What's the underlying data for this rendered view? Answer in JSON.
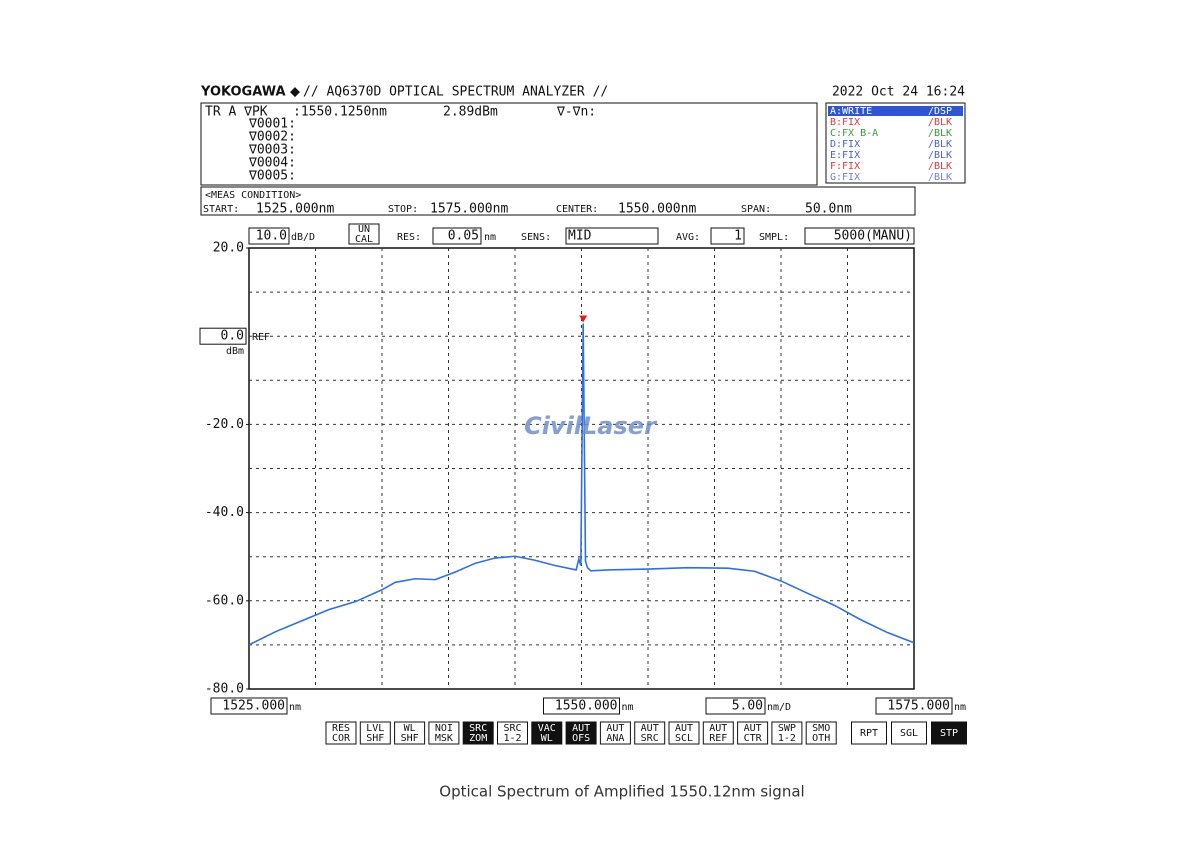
{
  "header": {
    "brand": "YOKOGAWA ◆",
    "model": "// AQ6370D OPTICAL SPECTRUM ANALYZER //",
    "datetime": "2022 Oct 24 16:24"
  },
  "marker": {
    "trace": "TR A ∇PK",
    "wavelength": ":1550.1250nm",
    "level": "2.89dBm",
    "delta": "∇-∇n:",
    "markers": [
      "∇0001:",
      "∇0002:",
      "∇0003:",
      "∇0004:",
      "∇0005:"
    ]
  },
  "traces": [
    {
      "name": "A:WRITE",
      "mode": "/DSP",
      "color": "#ffffff",
      "selected": true
    },
    {
      "name": "B:FIX",
      "mode": "/BLK",
      "color": "#e03a3a"
    },
    {
      "name": "C:FX B-A",
      "mode": "/BLK",
      "color": "#3a9a3a"
    },
    {
      "name": "D:FIX",
      "mode": "/BLK",
      "color": "#4a5fd0"
    },
    {
      "name": "E:FIX",
      "mode": "/BLK",
      "color": "#4a5fd0"
    },
    {
      "name": "F:FIX",
      "mode": "/BLK",
      "color": "#e03a3a"
    },
    {
      "name": "G:FIX",
      "mode": "/BLK",
      "color": "#6a80e0"
    }
  ],
  "meas_condition": {
    "title": "<MEAS CONDITION>",
    "start_label": "START:",
    "start": "1525.000nm",
    "stop_label": "STOP:",
    "stop": "1575.000nm",
    "center_label": "CENTER:",
    "center": "1550.000nm",
    "span_label": "SPAN:",
    "span": "50.0nm"
  },
  "settings": {
    "ydiv_unit": "dB/D",
    "uncal": [
      "UN",
      "CAL"
    ],
    "res_label": "RES:",
    "res": "0.05",
    "res_unit": "nm",
    "sens_label": "SENS:",
    "sens": "MID",
    "avg_label": "AVG:",
    "avg": "1",
    "smpl_label": "SMPL:",
    "smpl": "5000(MANU)",
    "ref_label": "REF",
    "ref_unit": "dBm",
    "x_unit_start": "nm",
    "x_unit_center": "nm",
    "xdiv_unit": "nm/D",
    "x_unit_stop": "nm"
  },
  "buttons": [
    {
      "lines": [
        "RES",
        "COR"
      ]
    },
    {
      "lines": [
        "LVL",
        "SHF"
      ]
    },
    {
      "lines": [
        "WL",
        "SHF"
      ]
    },
    {
      "lines": [
        "NOI",
        "MSK"
      ]
    },
    {
      "lines": [
        "SRC",
        "ZOM"
      ],
      "selected": true
    },
    {
      "lines": [
        "SRC",
        "1-2"
      ]
    },
    {
      "lines": [
        "VAC",
        "WL"
      ],
      "selected": true
    },
    {
      "lines": [
        "AUT",
        "OFS"
      ],
      "selected": true
    },
    {
      "lines": [
        "AUT",
        "ANA"
      ]
    },
    {
      "lines": [
        "AUT",
        "SRC"
      ]
    },
    {
      "lines": [
        "AUT",
        "SCL"
      ]
    },
    {
      "lines": [
        "AUT",
        "REF"
      ]
    },
    {
      "lines": [
        "AUT",
        "CTR"
      ]
    },
    {
      "lines": [
        "SWP",
        "1-2"
      ]
    },
    {
      "lines": [
        "SMO",
        "OTH"
      ]
    },
    {
      "lines": [
        "RPT"
      ]
    },
    {
      "lines": [
        "SGL"
      ]
    },
    {
      "lines": [
        "STP"
      ],
      "selected": true
    }
  ],
  "watermark": "CivilLaser",
  "caption": "Optical Spectrum of Amplified 1550.12nm signal",
  "chart_data": {
    "type": "line",
    "x": [
      1525,
      1527,
      1529,
      1531,
      1533,
      1535,
      1536,
      1537.5,
      1539,
      1540.5,
      1542,
      1543.5,
      1545,
      1546.5,
      1548,
      1549.6,
      1549.8,
      1549.95,
      1550.125,
      1550.3,
      1550.45,
      1550.7,
      1552,
      1555,
      1558,
      1561,
      1563,
      1565,
      1567,
      1569,
      1571,
      1573,
      1575
    ],
    "series": [
      {
        "name": "A",
        "color": "#2f6fe0",
        "values": [
          -70,
          -67,
          -64.5,
          -62,
          -60.2,
          -57.5,
          -55.8,
          -55,
          -55.2,
          -53.5,
          -51.5,
          -50.3,
          -49.9,
          -50.8,
          -52,
          -53,
          -50.5,
          -52,
          2.89,
          -51,
          -52.5,
          -53.2,
          -53,
          -52.8,
          -52.5,
          -52.6,
          -53.3,
          -55.5,
          -58.3,
          -61,
          -64.3,
          -67.2,
          -69.5
        ]
      }
    ],
    "marker_color": "#e02020",
    "xlim": [
      1525,
      1575
    ],
    "ylim": [
      -80,
      20
    ],
    "xticks": [
      {
        "value": 1525,
        "label": "1525.000"
      },
      {
        "value": 1550,
        "label": "1550.000"
      },
      {
        "value": 1575,
        "label": "1575.000"
      }
    ],
    "yticks": [
      {
        "value": 20,
        "label": "20.0"
      },
      {
        "value": -20,
        "label": "-20.0"
      },
      {
        "value": -40,
        "label": "-40.0"
      },
      {
        "value": -60,
        "label": "-60.0"
      },
      {
        "value": -80,
        "label": "-80.0"
      }
    ],
    "ref": {
      "value": 0,
      "label": "0.0"
    },
    "ydiv": {
      "value": 10,
      "label": "10.0"
    },
    "xdiv": {
      "value": 5,
      "label": "5.00"
    },
    "grid": true
  }
}
